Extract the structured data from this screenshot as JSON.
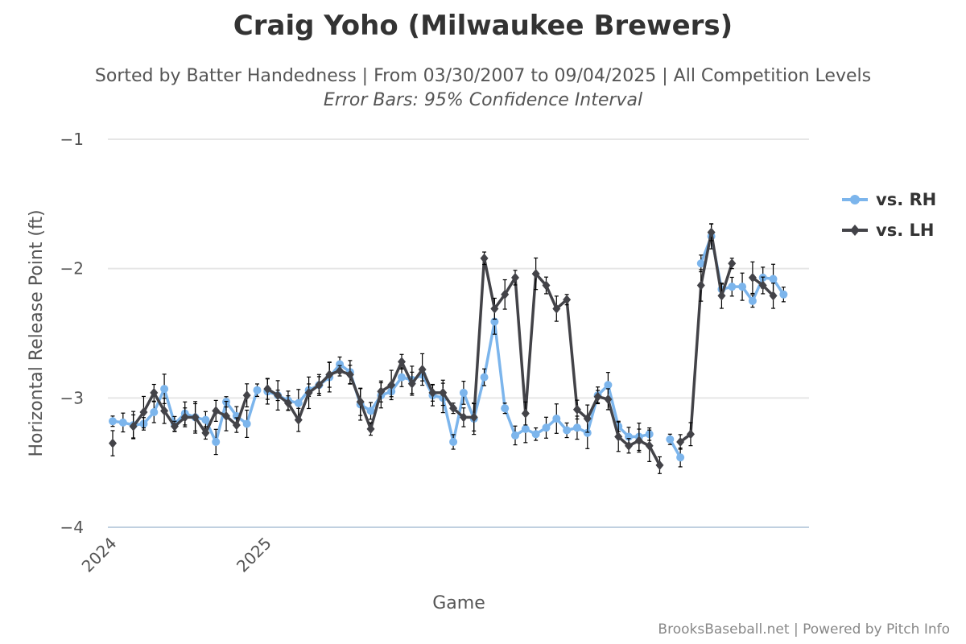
{
  "chart_data": {
    "type": "line",
    "title": "Craig Yoho (Milwaukee Brewers)",
    "subtitle": "Sorted by Batter Handedness | From 03/30/2007 to 09/04/2025 | All Competition Levels",
    "subtitle2": "Error Bars: 95% Confidence Interval",
    "xlabel": "Game",
    "ylabel": "Horizontal Release Point (ft)",
    "credit": "BrooksBaseball.net | Powered by Pitch Info",
    "ylim": [
      -4,
      -1
    ],
    "yticks": [
      -1,
      -2,
      -3,
      -4
    ],
    "ytick_labels": [
      "−1",
      "−2",
      "−3",
      "−4"
    ],
    "xlim": [
      0,
      67
    ],
    "xticks": [
      {
        "x": 0,
        "label": "2024"
      },
      {
        "x": 15,
        "label": "2025"
      }
    ],
    "grid": true,
    "legend_position": "right",
    "series": [
      {
        "name": "vs. RH",
        "color": "#7cb5ec",
        "segments": [
          [
            [
              0,
              -3.18
            ],
            [
              1,
              -3.19
            ],
            [
              2,
              -3.21
            ],
            [
              3,
              -3.2
            ],
            [
              4,
              -3.11
            ],
            [
              5,
              -2.93
            ],
            [
              6,
              -3.2
            ],
            [
              7,
              -3.12
            ],
            [
              8,
              -3.15
            ],
            [
              9,
              -3.17
            ],
            [
              10,
              -3.34
            ],
            [
              11,
              -3.03
            ],
            [
              12,
              -3.14
            ],
            [
              13,
              -3.2
            ],
            [
              14,
              -2.94
            ]
          ],
          [
            [
              15,
              -2.95
            ],
            [
              16,
              -2.98
            ],
            [
              17,
              -3.02
            ],
            [
              18,
              -3.04
            ],
            [
              19,
              -2.94
            ],
            [
              20,
              -2.9
            ],
            [
              21,
              -2.84
            ],
            [
              22,
              -2.74
            ],
            [
              23,
              -2.8
            ],
            [
              24,
              -3.05
            ],
            [
              25,
              -3.1
            ],
            [
              26,
              -2.98
            ],
            [
              27,
              -2.95
            ],
            [
              28,
              -2.84
            ],
            [
              29,
              -2.86
            ],
            [
              30,
              -2.82
            ],
            [
              31,
              -2.98
            ],
            [
              32,
              -3.0
            ],
            [
              33,
              -3.34
            ],
            [
              34,
              -2.96
            ],
            [
              35,
              -3.16
            ],
            [
              36,
              -2.84
            ],
            [
              37,
              -2.41
            ],
            [
              38,
              -3.08
            ],
            [
              39,
              -3.29
            ],
            [
              40,
              -3.24
            ],
            [
              41,
              -3.28
            ],
            [
              42,
              -3.23
            ],
            [
              43,
              -3.16
            ],
            [
              44,
              -3.25
            ],
            [
              45,
              -3.23
            ],
            [
              46,
              -3.27
            ],
            [
              47,
              -2.98
            ],
            [
              48,
              -2.9
            ],
            [
              49,
              -3.22
            ],
            [
              50,
              -3.3
            ],
            [
              51,
              -3.3
            ],
            [
              52,
              -3.28
            ]
          ],
          [
            [
              54,
              -3.32
            ],
            [
              55,
              -3.46
            ]
          ],
          [
            [
              57,
              -1.96
            ],
            [
              58,
              -1.75
            ],
            [
              59,
              -2.16
            ],
            [
              60,
              -2.14
            ],
            [
              61,
              -2.14
            ],
            [
              62,
              -2.25
            ],
            [
              63,
              -2.07
            ],
            [
              64,
              -2.08
            ],
            [
              65,
              -2.2
            ]
          ]
        ]
      },
      {
        "name": "vs. LH",
        "color": "#434348",
        "segments": [
          [
            [
              0,
              -3.35
            ]
          ],
          [
            [
              2,
              -3.22
            ],
            [
              3,
              -3.11
            ],
            [
              4,
              -2.96
            ],
            [
              5,
              -3.1
            ],
            [
              6,
              -3.22
            ],
            [
              7,
              -3.15
            ],
            [
              8,
              -3.15
            ],
            [
              9,
              -3.27
            ],
            [
              10,
              -3.1
            ],
            [
              11,
              -3.14
            ],
            [
              12,
              -3.21
            ],
            [
              13,
              -2.98
            ]
          ],
          [
            [
              15,
              -2.93
            ],
            [
              16,
              -2.98
            ],
            [
              17,
              -3.04
            ],
            [
              18,
              -3.17
            ],
            [
              19,
              -2.96
            ],
            [
              20,
              -2.9
            ],
            [
              21,
              -2.82
            ],
            [
              22,
              -2.79
            ],
            [
              23,
              -2.82
            ],
            [
              24,
              -3.03
            ],
            [
              25,
              -3.24
            ],
            [
              26,
              -2.95
            ],
            [
              27,
              -2.9
            ],
            [
              28,
              -2.72
            ],
            [
              29,
              -2.89
            ],
            [
              30,
              -2.78
            ],
            [
              31,
              -2.96
            ],
            [
              32,
              -2.96
            ],
            [
              33,
              -3.08
            ],
            [
              34,
              -3.15
            ],
            [
              35,
              -3.15
            ],
            [
              36,
              -1.92
            ],
            [
              37,
              -2.31
            ],
            [
              38,
              -2.2
            ],
            [
              39,
              -2.07
            ],
            [
              40,
              -3.12
            ],
            [
              41,
              -2.04
            ],
            [
              42,
              -2.13
            ],
            [
              43,
              -2.31
            ],
            [
              44,
              -2.24
            ],
            [
              45,
              -3.09
            ],
            [
              46,
              -3.16
            ],
            [
              47,
              -2.99
            ],
            [
              48,
              -3.01
            ],
            [
              49,
              -3.3
            ],
            [
              50,
              -3.37
            ],
            [
              51,
              -3.33
            ],
            [
              52,
              -3.37
            ],
            [
              53,
              -3.52
            ]
          ],
          [
            [
              55,
              -3.34
            ],
            [
              56,
              -3.28
            ],
            [
              57,
              -2.13
            ],
            [
              58,
              -1.72
            ],
            [
              59,
              -2.21
            ],
            [
              60,
              -1.96
            ]
          ],
          [
            [
              62,
              -2.07
            ],
            [
              63,
              -2.13
            ],
            [
              64,
              -2.21
            ]
          ]
        ]
      }
    ]
  }
}
